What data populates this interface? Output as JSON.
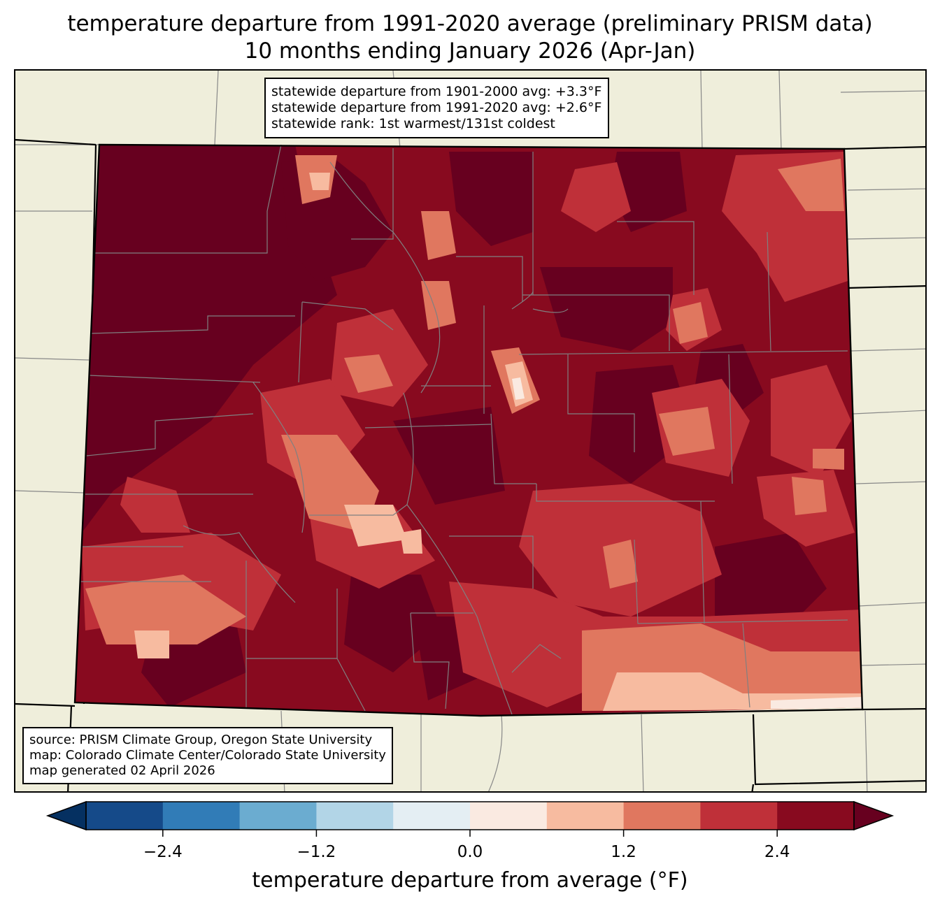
{
  "title": {
    "line1": "temperature departure from 1991-2020 average (preliminary PRISM data)",
    "line2": "10 months ending January 2026 (Apr-Jan)"
  },
  "stats": {
    "line1": "statewide departure from 1901-2000 avg: +3.3°F",
    "line2": "statewide departure from 1991-2020 avg: +2.6°F",
    "line3": "statewide rank: 1st warmest/131st coldest"
  },
  "source": {
    "line1": "source: PRISM Climate Group, Oregon State University",
    "line2": "map: Colorado Climate Center/Colorado State University",
    "line3": "map generated 02 April 2026"
  },
  "colorbar": {
    "label": "temperature departure from average (°F)",
    "ticks": [
      "−2.4",
      "−1.2",
      "0.0",
      "1.2",
      "2.4"
    ],
    "tick_values": [
      -2.4,
      -1.2,
      0.0,
      1.2,
      2.4
    ],
    "bounds": [
      -3.0,
      3.0
    ],
    "bin_width": 0.6,
    "under_color": "#053061",
    "over_color": "#67001f",
    "bin_colors": [
      "#154a89",
      "#317cb7",
      "#6bacd0",
      "#b2d5e7",
      "#e4eef3",
      "#faeae1",
      "#f7bba0",
      "#e0775f",
      "#bf3039",
      "#880a1f"
    ]
  },
  "map_colors": {
    "land": "#efeedb",
    "darkest": "#67001f",
    "dark": "#880a1f",
    "mid": "#bf3039",
    "light": "#e0775f",
    "lighter": "#f7bba0",
    "lightest": "#faeae1"
  }
}
